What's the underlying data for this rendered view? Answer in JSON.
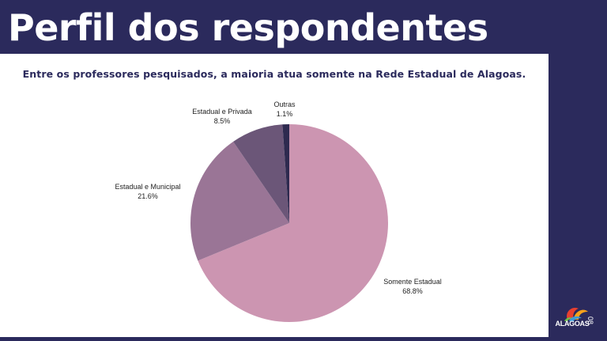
{
  "slide": {
    "title": "Perfil dos respondentes",
    "page_number": "08",
    "logo_text": "ALAGOAS",
    "background_color": "#2b2a5c"
  },
  "chart_data": {
    "type": "pie",
    "title": "Entre os professores pesquisados, a maioria atua somente na Rede Estadual de Alagoas.",
    "slices": [
      {
        "label": "Somente Estadual",
        "value": 68.8,
        "value_label": "68.8%",
        "color": "#cc95b1"
      },
      {
        "label": "Estadual e Municipal",
        "value": 21.6,
        "value_label": "21.6%",
        "color": "#9a7596"
      },
      {
        "label": "Estadual e Privada",
        "value": 8.5,
        "value_label": "8.5%",
        "color": "#6b5678"
      },
      {
        "label": "Outras",
        "value": 1.1,
        "value_label": "1.1%",
        "color": "#2e2a4f"
      }
    ],
    "start_angle_deg": 0,
    "direction": "clockwise"
  }
}
